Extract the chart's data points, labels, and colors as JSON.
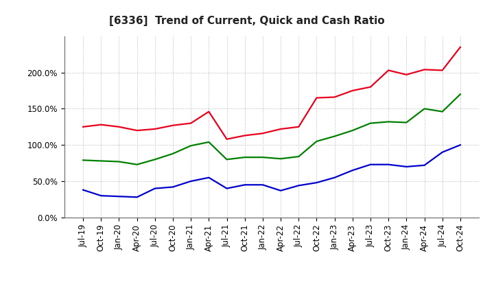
{
  "title": "[6336]  Trend of Current, Quick and Cash Ratio",
  "x_labels": [
    "Jul-19",
    "Oct-19",
    "Jan-20",
    "Apr-20",
    "Jul-20",
    "Oct-20",
    "Jan-21",
    "Apr-21",
    "Jul-21",
    "Oct-21",
    "Jan-22",
    "Apr-22",
    "Jul-22",
    "Oct-22",
    "Jan-23",
    "Apr-23",
    "Jul-23",
    "Oct-23",
    "Jan-24",
    "Apr-24",
    "Jul-24",
    "Oct-24"
  ],
  "current_ratio": [
    1.25,
    1.28,
    1.25,
    1.2,
    1.22,
    1.27,
    1.3,
    1.46,
    1.08,
    1.13,
    1.16,
    1.22,
    1.25,
    1.65,
    1.66,
    1.75,
    1.8,
    2.03,
    1.97,
    2.04,
    2.03,
    2.35
  ],
  "quick_ratio": [
    0.79,
    0.78,
    0.77,
    0.73,
    0.8,
    0.88,
    0.99,
    1.04,
    0.8,
    0.83,
    0.83,
    0.81,
    0.84,
    1.05,
    1.12,
    1.2,
    1.3,
    1.32,
    1.31,
    1.5,
    1.46,
    1.7
  ],
  "cash_ratio": [
    0.38,
    0.3,
    0.29,
    0.28,
    0.4,
    0.42,
    0.5,
    0.55,
    0.4,
    0.45,
    0.45,
    0.37,
    0.44,
    0.48,
    0.55,
    0.65,
    0.73,
    0.73,
    0.7,
    0.72,
    0.9,
    1.0
  ],
  "current_color": "#e8001c",
  "quick_color": "#008000",
  "cash_color": "#0000cc",
  "background_color": "#ffffff",
  "plot_bg_color": "#ffffff",
  "grid_color": "#aaaaaa",
  "ylim": [
    0.0,
    2.5
  ],
  "yticks": [
    0.0,
    0.5,
    1.0,
    1.5,
    2.0
  ],
  "title_fontsize": 11,
  "tick_fontsize": 8.5,
  "legend_fontsize": 9.5,
  "linewidth": 1.6
}
